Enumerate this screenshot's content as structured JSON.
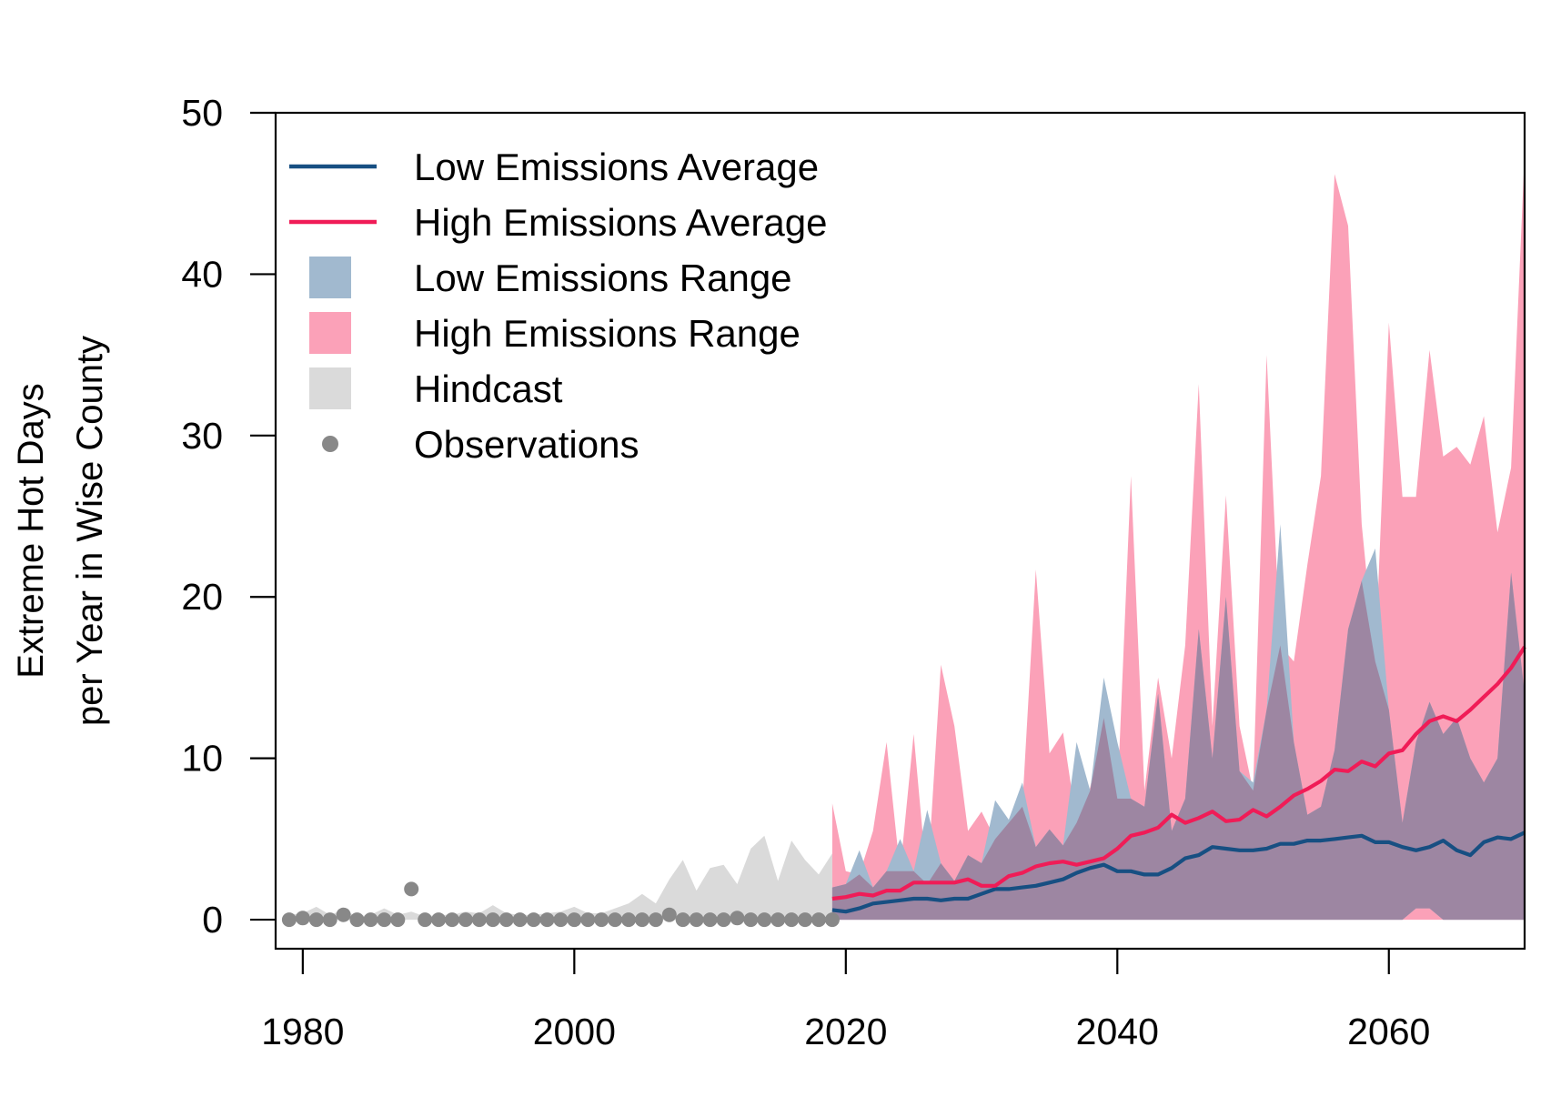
{
  "chart_data": {
    "type": "area",
    "title": "",
    "xlabel": "",
    "ylabel": [
      "Extreme Hot Days",
      "per Year in Wise County"
    ],
    "xlim": [
      1978,
      2070
    ],
    "ylim": [
      -1.8,
      50
    ],
    "x_ticks": [
      "1980",
      "2000",
      "2020",
      "2040",
      "2060"
    ],
    "y_ticks": [
      "0",
      "10",
      "20",
      "30",
      "40",
      "50"
    ],
    "grid": false,
    "legend_position": "top-left",
    "legend": [
      {
        "label": "Low Emissions Average",
        "symbol": "line",
        "color": "#174f82"
      },
      {
        "label": "High Emissions Average",
        "symbol": "line",
        "color": "#f01c57"
      },
      {
        "label": "Low Emissions Range",
        "symbol": "box",
        "color": "#a1b9cf"
      },
      {
        "label": "High Emissions Range",
        "symbol": "box",
        "color": "#fba1b8"
      },
      {
        "label": "Hindcast",
        "symbol": "box",
        "color": "#dadada"
      },
      {
        "label": "Observations",
        "symbol": "point",
        "color": "#888888"
      }
    ],
    "colors": {
      "low_avg": "#174f82",
      "high_avg": "#f01c57",
      "low_range": "#a1b9cf",
      "high_range": "#fba1b8",
      "overlap": "#9d86a2",
      "hindcast": "#dadada",
      "observations": "#888888"
    },
    "series": [
      {
        "name": "Observations",
        "kind": "points",
        "x": [
          1979,
          1980,
          1981,
          1982,
          1983,
          1984,
          1985,
          1986,
          1987,
          1988,
          1989,
          1990,
          1991,
          1992,
          1993,
          1994,
          1995,
          1996,
          1997,
          1998,
          1999,
          2000,
          2001,
          2002,
          2003,
          2004,
          2005,
          2006,
          2007,
          2008,
          2009,
          2010,
          2011,
          2012,
          2013,
          2014,
          2015,
          2016,
          2017,
          2018,
          2019
        ],
        "y": [
          0,
          0.1,
          0,
          0,
          0.3,
          0,
          0,
          0,
          0,
          1.9,
          0,
          0,
          0,
          0,
          0,
          0,
          0,
          0,
          0,
          0,
          0,
          0,
          0,
          0,
          0,
          0,
          0,
          0,
          0.3,
          0,
          0,
          0,
          0,
          0.1,
          0,
          0,
          0,
          0,
          0,
          0,
          0
        ]
      },
      {
        "name": "Hindcast",
        "kind": "band",
        "x": [
          1979,
          1980,
          1981,
          1982,
          1983,
          1984,
          1985,
          1986,
          1987,
          1988,
          1989,
          1990,
          1991,
          1992,
          1993,
          1994,
          1995,
          1996,
          1997,
          1998,
          1999,
          2000,
          2001,
          2002,
          2003,
          2004,
          2005,
          2006,
          2007,
          2008,
          2009,
          2010,
          2011,
          2012,
          2013,
          2014,
          2015,
          2016,
          2017,
          2018,
          2019
        ],
        "low": [
          0,
          0,
          0,
          0,
          0,
          0,
          0,
          0,
          0,
          0,
          0,
          0,
          0,
          0,
          0,
          0,
          0,
          0,
          0,
          0,
          0,
          0,
          0,
          0,
          0,
          0,
          0,
          0,
          0,
          0,
          0,
          0,
          0,
          0,
          0,
          0,
          0,
          0,
          0,
          0,
          0
        ],
        "high": [
          0.3,
          0.4,
          0.8,
          0.3,
          0.6,
          0.2,
          0.3,
          0.7,
          0.3,
          0.5,
          0.2,
          0.3,
          0.3,
          0.5,
          0.4,
          0.9,
          0.4,
          0.3,
          0.3,
          0.4,
          0.5,
          0.8,
          0.4,
          0.4,
          0.7,
          1.0,
          1.6,
          1.0,
          2.5,
          3.7,
          1.8,
          3.2,
          3.4,
          2.2,
          4.4,
          5.2,
          2.4,
          4.9,
          3.7,
          2.8,
          4.1
        ]
      },
      {
        "name": "Low Emissions Range",
        "kind": "band",
        "x": [
          2019,
          2020,
          2021,
          2022,
          2023,
          2024,
          2025,
          2026,
          2027,
          2028,
          2029,
          2030,
          2031,
          2032,
          2033,
          2034,
          2035,
          2036,
          2037,
          2038,
          2039,
          2040,
          2041,
          2042,
          2043,
          2044,
          2045,
          2046,
          2047,
          2048,
          2049,
          2050,
          2051,
          2052,
          2053,
          2054,
          2055,
          2056,
          2057,
          2058,
          2059,
          2060,
          2061,
          2062,
          2063,
          2064,
          2065,
          2066,
          2067,
          2068,
          2069,
          2070
        ],
        "low": [
          0,
          0,
          0,
          0,
          0,
          0,
          0,
          0,
          0,
          0,
          0,
          0,
          0,
          0,
          0,
          0,
          0,
          0,
          0,
          0,
          0,
          0,
          0,
          0,
          0,
          0,
          0,
          0,
          0,
          0,
          0,
          0,
          0,
          0,
          0,
          0,
          0,
          0,
          0,
          0,
          0,
          0,
          0,
          0.7,
          0.7,
          0,
          0,
          0,
          0,
          0,
          0,
          0
        ],
        "high": [
          2.0,
          2.2,
          4.3,
          2.0,
          3.0,
          5.0,
          3.0,
          6.8,
          3.5,
          2.4,
          4.0,
          3.5,
          7.4,
          6.2,
          8.5,
          4.5,
          5.6,
          4.6,
          11.0,
          8.0,
          15.0,
          11.0,
          7.5,
          7.0,
          14.0,
          5.5,
          7.5,
          18.0,
          10.0,
          20.0,
          9.2,
          8.5,
          13.0,
          24.5,
          11.0,
          6.5,
          7.0,
          10.5,
          18.0,
          21.0,
          23.0,
          13.0,
          6.0,
          11.0,
          13.5,
          11.5,
          12.5,
          10.0,
          8.5,
          10.0,
          21.5,
          14.0
        ]
      },
      {
        "name": "High Emissions Range",
        "kind": "band",
        "x": [
          2019,
          2020,
          2021,
          2022,
          2023,
          2024,
          2025,
          2026,
          2027,
          2028,
          2029,
          2030,
          2031,
          2032,
          2033,
          2034,
          2035,
          2036,
          2037,
          2038,
          2039,
          2040,
          2041,
          2042,
          2043,
          2044,
          2045,
          2046,
          2047,
          2048,
          2049,
          2050,
          2051,
          2052,
          2053,
          2054,
          2055,
          2056,
          2057,
          2058,
          2059,
          2060,
          2061,
          2062,
          2063,
          2064,
          2065,
          2066,
          2067,
          2068,
          2069,
          2070
        ],
        "low": [
          0,
          0,
          0,
          0,
          0,
          0,
          0,
          0,
          0,
          0,
          0,
          0,
          0,
          0,
          0,
          0,
          0,
          0,
          0,
          0,
          0,
          0,
          0,
          0,
          0,
          0,
          0,
          0,
          0,
          0,
          0,
          0,
          0,
          0,
          0,
          0,
          0,
          0,
          0,
          0,
          0,
          0,
          0,
          0,
          0,
          0,
          0,
          0,
          0,
          0,
          0,
          0
        ],
        "high": [
          7.2,
          3.0,
          2.8,
          5.5,
          11.0,
          3.0,
          11.5,
          2.2,
          15.8,
          12.0,
          5.5,
          6.7,
          5.0,
          6.0,
          7.0,
          21.7,
          10.3,
          11.6,
          6.0,
          8.2,
          12.5,
          7.5,
          27.5,
          8.0,
          15.0,
          10.0,
          17.0,
          33.2,
          12.0,
          26.3,
          12.0,
          8.0,
          35.0,
          17.0,
          16.0,
          22.0,
          27.5,
          46.2,
          43.0,
          24.5,
          16.0,
          37.0,
          26.2,
          26.2,
          35.3,
          28.7,
          29.3,
          28.2,
          31.2,
          24.0,
          28.0,
          47.5
        ]
      },
      {
        "name": "Low Emissions Average",
        "kind": "line",
        "x": [
          2019,
          2020,
          2021,
          2022,
          2023,
          2024,
          2025,
          2026,
          2027,
          2028,
          2029,
          2030,
          2031,
          2032,
          2033,
          2034,
          2035,
          2036,
          2037,
          2038,
          2039,
          2040,
          2041,
          2042,
          2043,
          2044,
          2045,
          2046,
          2047,
          2048,
          2049,
          2050,
          2051,
          2052,
          2053,
          2054,
          2055,
          2056,
          2057,
          2058,
          2059,
          2060,
          2061,
          2062,
          2063,
          2064,
          2065,
          2066,
          2067,
          2068,
          2069,
          2070
        ],
        "y": [
          0.6,
          0.5,
          0.7,
          1.0,
          1.1,
          1.2,
          1.3,
          1.3,
          1.2,
          1.3,
          1.3,
          1.6,
          1.9,
          1.9,
          2.0,
          2.1,
          2.3,
          2.5,
          2.9,
          3.2,
          3.4,
          3.0,
          3.0,
          2.8,
          2.8,
          3.2,
          3.8,
          4.0,
          4.5,
          4.4,
          4.3,
          4.3,
          4.4,
          4.7,
          4.7,
          4.9,
          4.9,
          5.0,
          5.1,
          5.2,
          4.8,
          4.8,
          4.5,
          4.3,
          4.5,
          4.9,
          4.3,
          4.0,
          4.8,
          5.1,
          5.0,
          5.4
        ]
      },
      {
        "name": "High Emissions Average",
        "kind": "line",
        "x": [
          2019,
          2020,
          2021,
          2022,
          2023,
          2024,
          2025,
          2026,
          2027,
          2028,
          2029,
          2030,
          2031,
          2032,
          2033,
          2034,
          2035,
          2036,
          2037,
          2038,
          2039,
          2040,
          2041,
          2042,
          2043,
          2044,
          2045,
          2046,
          2047,
          2048,
          2049,
          2050,
          2051,
          2052,
          2053,
          2054,
          2055,
          2056,
          2057,
          2058,
          2059,
          2060,
          2061,
          2062,
          2063,
          2064,
          2065,
          2066,
          2067,
          2068,
          2069,
          2070
        ],
        "y": [
          1.3,
          1.4,
          1.6,
          1.5,
          1.8,
          1.8,
          2.3,
          2.3,
          2.3,
          2.3,
          2.5,
          2.1,
          2.1,
          2.7,
          2.9,
          3.3,
          3.5,
          3.6,
          3.4,
          3.6,
          3.8,
          4.4,
          5.2,
          5.4,
          5.7,
          6.5,
          6.0,
          6.3,
          6.7,
          6.1,
          6.2,
          6.8,
          6.4,
          7.0,
          7.7,
          8.1,
          8.6,
          9.3,
          9.2,
          9.8,
          9.5,
          10.3,
          10.5,
          11.5,
          12.3,
          12.6,
          12.3,
          13.0,
          13.8,
          14.6,
          15.6,
          16.9
        ]
      }
    ]
  }
}
